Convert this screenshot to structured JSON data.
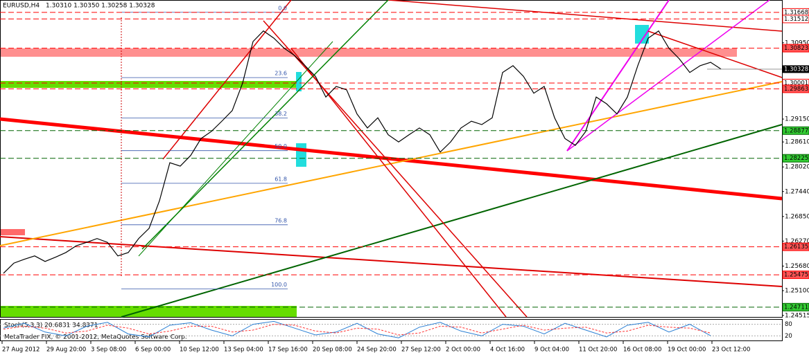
{
  "chart_data": {
    "type": "line",
    "symbol": "EURUSD,H4",
    "ohlc_text": "1.30310 1.30350 1.30258 1.30328",
    "copyright": "MetaTrader FIX, © 2001-2012, MetaQuotes Software Corp.",
    "series": [
      {
        "name": "EURUSD,H4",
        "color": "#000000",
        "values": [
          1.2551,
          1.2575,
          1.2584,
          1.2592,
          1.2579,
          1.2589,
          1.26,
          1.2616,
          1.2624,
          1.2633,
          1.2624,
          1.2592,
          1.26,
          1.2633,
          1.2657,
          1.2722,
          1.2812,
          1.2804,
          1.2829,
          1.2869,
          1.2886,
          1.291,
          1.2935,
          1.3,
          1.3098,
          1.3123,
          1.3106,
          1.3082,
          1.3065,
          1.3041,
          1.3016,
          1.2967,
          1.2992,
          1.2984,
          1.2927,
          1.2894,
          1.2918,
          1.2878,
          1.2861,
          1.2878,
          1.2894,
          1.2878,
          1.2837,
          1.2861,
          1.2894,
          1.291,
          1.2902,
          1.2918,
          1.3025,
          1.3041,
          1.3016,
          1.2976,
          1.2992,
          1.2918,
          1.2869,
          1.2853,
          1.2886,
          1.2967,
          1.2951,
          1.2927,
          1.2967,
          1.3041,
          1.3106,
          1.3123,
          1.3082,
          1.3057,
          1.3025,
          1.3041,
          1.3049,
          1.3033
        ]
      }
    ],
    "time_labels": [
      "27 Aug 2012",
      "29 Aug 20:00",
      "3 Sep 08:00",
      "6 Sep 00:00",
      "10 Sep 12:00",
      "13 Sep 04:00",
      "17 Sep 16:00",
      "20 Sep 08:00",
      "24 Sep 20:00",
      "27 Sep 12:00",
      "2 Oct 00:00",
      "4 Oct 16:00",
      "9 Oct 04:00",
      "11 Oct 20:00",
      "16 Oct 08:00",
      "19 Oct 00:00",
      "23 Oct 12:00"
    ],
    "ylim": [
      1.2448,
      1.3196
    ],
    "yticks": [
      {
        "value": 1.3095,
        "label": "1.30950"
      },
      {
        "value": 1.2915,
        "label": "1.29150"
      },
      {
        "value": 1.2861,
        "label": "1.28610"
      },
      {
        "value": 1.2802,
        "label": "1.28020"
      },
      {
        "value": 1.2744,
        "label": "1.27440"
      },
      {
        "value": 1.2685,
        "label": "1.26850"
      },
      {
        "value": 1.2627,
        "label": "1.26270"
      },
      {
        "value": 1.2568,
        "label": "1.25680"
      },
      {
        "value": 1.251,
        "label": "1.25100"
      },
      {
        "value": 1.24515,
        "label": "1.24515"
      }
    ],
    "levels": [
      {
        "value": 1.31668,
        "color": "#ff0000",
        "fill": "#ffffff"
      },
      {
        "value": 1.31512,
        "color": "#ff0000",
        "fill": "#ffffff"
      },
      {
        "value": 1.30823,
        "color": "#ff0000",
        "fill": "#ff5555"
      },
      {
        "value": 1.30001,
        "color": "#ff0000",
        "fill": "#ffffff"
      },
      {
        "value": 1.29863,
        "color": "#ff0000",
        "fill": "#ff5555"
      },
      {
        "value": 1.28877,
        "color": "#006400",
        "fill": "#33cc33"
      },
      {
        "value": 1.28225,
        "color": "#006400",
        "fill": "#33cc33"
      },
      {
        "value": 1.26135,
        "color": "#ff0000",
        "fill": "#ff5555"
      },
      {
        "value": 1.25475,
        "color": "#ff0000",
        "fill": "#ff5555"
      },
      {
        "value": 1.24711,
        "color": "#006400",
        "fill": "#33cc33"
      }
    ],
    "last_price": 1.30328,
    "fibonacci": {
      "high": 1.3167,
      "low": 1.2514,
      "color": "#3355aa",
      "levels": [
        {
          "value": 0,
          "label": "0.0"
        },
        {
          "value": 23.6,
          "label": "23.6"
        },
        {
          "value": 38.2,
          "label": "38.2"
        },
        {
          "value": 50,
          "label": "50.0"
        },
        {
          "value": 61.8,
          "label": "61.8"
        },
        {
          "value": 76.8,
          "label": "76.8"
        },
        {
          "value": 100,
          "label": "100.0"
        }
      ]
    },
    "stochastic": {
      "title": "Stoch(5,3,3) 20.6831 34.8371",
      "ylim": [
        0,
        100
      ],
      "yticks": [
        80,
        20
      ],
      "series": [
        {
          "color": "#2a7fd4",
          "values": [
            60,
            85,
            40,
            20,
            70,
            90,
            30,
            15,
            75,
            88,
            50,
            20,
            80,
            95,
            60,
            25,
            40,
            85,
            30,
            10,
            65,
            90,
            45,
            20,
            80,
            70,
            30,
            85,
            50,
            15,
            75,
            90,
            40,
            80,
            21
          ]
        },
        {
          "color": "#ff3333",
          "values": [
            55,
            70,
            60,
            35,
            45,
            75,
            60,
            30,
            45,
            70,
            70,
            40,
            50,
            80,
            75,
            45,
            35,
            60,
            55,
            25,
            35,
            70,
            65,
            35,
            55,
            75,
            50,
            60,
            65,
            35,
            45,
            75,
            65,
            60,
            35
          ]
        }
      ]
    }
  }
}
